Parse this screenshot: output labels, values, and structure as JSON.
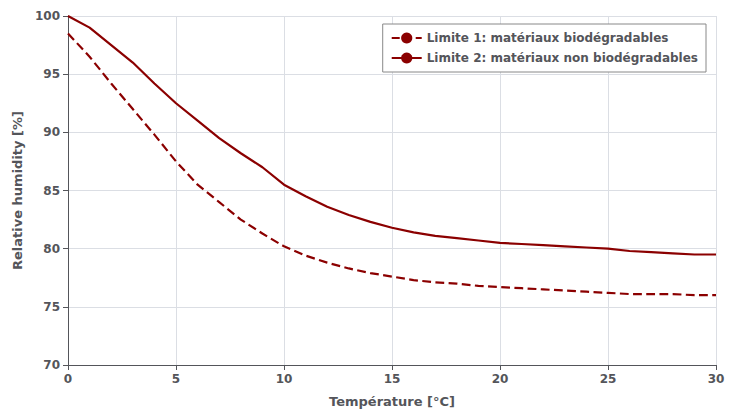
{
  "chart_data": {
    "type": "line",
    "xlabel": "Température [°C]",
    "ylabel": "Relative humidity [%]",
    "x": [
      0,
      1,
      2,
      3,
      4,
      5,
      6,
      7,
      8,
      9,
      10,
      11,
      12,
      13,
      14,
      15,
      16,
      17,
      18,
      19,
      20,
      21,
      22,
      23,
      24,
      25,
      26,
      27,
      28,
      29,
      30
    ],
    "series": [
      {
        "name": "Limite 1: matériaux biodégradables",
        "color": "#8b0000",
        "line_style": "dashed",
        "values": [
          98.5,
          96.5,
          94.2,
          92.0,
          89.8,
          87.5,
          85.5,
          84.0,
          82.5,
          81.3,
          80.2,
          79.4,
          78.8,
          78.3,
          77.9,
          77.6,
          77.3,
          77.1,
          77.0,
          76.8,
          76.7,
          76.6,
          76.5,
          76.4,
          76.3,
          76.2,
          76.1,
          76.1,
          76.1,
          76.0,
          76.0
        ]
      },
      {
        "name": "Limite 2: matériaux non biodégradables",
        "color": "#8b0000",
        "line_style": "solid",
        "values": [
          100.0,
          99.0,
          97.5,
          96.0,
          94.2,
          92.5,
          91.0,
          89.5,
          88.2,
          87.0,
          85.5,
          84.5,
          83.6,
          82.9,
          82.3,
          81.8,
          81.4,
          81.1,
          80.9,
          80.7,
          80.5,
          80.4,
          80.3,
          80.2,
          80.1,
          80.0,
          79.8,
          79.7,
          79.6,
          79.5,
          79.5
        ]
      }
    ],
    "xlim": [
      0,
      30
    ],
    "ylim": [
      70,
      100
    ],
    "xticks": [
      0,
      5,
      10,
      15,
      20,
      25,
      30
    ],
    "yticks": [
      70,
      75,
      80,
      85,
      90,
      95,
      100
    ],
    "grid": true,
    "legend": "upper right"
  }
}
